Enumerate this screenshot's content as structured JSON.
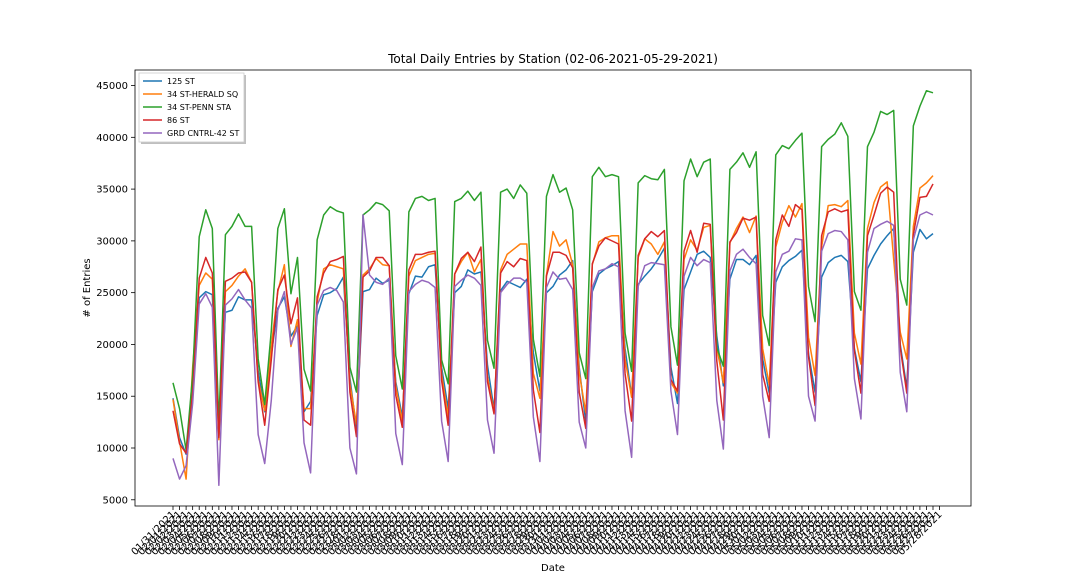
{
  "chart_data": {
    "type": "line",
    "title": "Total Daily Entries by Station (02-06-2021-05-29-2021)",
    "xlabel": "Date",
    "ylabel": "# of Entries",
    "ylim": [
      4400,
      46500
    ],
    "yticks": [
      5000,
      10000,
      15000,
      20000,
      25000,
      30000,
      35000,
      40000,
      45000
    ],
    "x_start_label": "01/31/2021",
    "x_end_label": "05/28/2021",
    "x_tick_labels": [
      "01/31/2021",
      "02/01/2021",
      "02/02/2021",
      "02/03/2021",
      "02/04/2021",
      "02/05/2021",
      "02/06/2021",
      "02/07/2021",
      "02/08/2021",
      "02/09/2021",
      "02/10/2021",
      "02/11/2021",
      "02/12/2021",
      "02/13/2021",
      "02/14/2021",
      "02/15/2021",
      "02/16/2021",
      "02/17/2021",
      "02/18/2021",
      "02/19/2021",
      "02/20/2021",
      "02/21/2021",
      "02/22/2021",
      "02/23/2021",
      "02/24/2021",
      "02/25/2021",
      "02/26/2021",
      "02/27/2021",
      "02/28/2021",
      "03/01/2021",
      "03/02/2021",
      "03/03/2021",
      "03/04/2021",
      "03/05/2021",
      "03/06/2021",
      "03/07/2021",
      "03/08/2021",
      "03/09/2021",
      "03/10/2021",
      "03/11/2021",
      "03/12/2021",
      "03/13/2021",
      "03/14/2021",
      "03/15/2021",
      "03/16/2021",
      "03/17/2021",
      "03/18/2021",
      "03/19/2021",
      "03/20/2021",
      "03/21/2021",
      "03/22/2021",
      "03/23/2021",
      "03/24/2021",
      "03/25/2021",
      "03/26/2021",
      "03/27/2021",
      "03/28/2021",
      "03/29/2021",
      "03/30/2021",
      "03/31/2021",
      "04/01/2021",
      "04/02/2021",
      "04/03/2021",
      "04/04/2021",
      "04/05/2021",
      "04/06/2021",
      "04/07/2021",
      "04/08/2021",
      "04/09/2021",
      "04/10/2021",
      "04/11/2021",
      "04/12/2021",
      "04/13/2021",
      "04/14/2021",
      "04/15/2021",
      "04/16/2021",
      "04/17/2021",
      "04/18/2021",
      "04/19/2021",
      "04/20/2021",
      "04/21/2021",
      "04/22/2021",
      "04/23/2021",
      "04/24/2021",
      "04/25/2021",
      "04/26/2021",
      "04/27/2021",
      "04/28/2021",
      "04/29/2021",
      "04/30/2021",
      "05/01/2021",
      "05/02/2021",
      "05/03/2021",
      "05/04/2021",
      "05/05/2021",
      "05/06/2021",
      "05/07/2021",
      "05/08/2021",
      "05/09/2021",
      "05/10/2021",
      "05/11/2021",
      "05/12/2021",
      "05/13/2021",
      "05/14/2021",
      "05/15/2021",
      "05/16/2021",
      "05/17/2021",
      "05/18/2021",
      "05/19/2021",
      "05/20/2021",
      "05/21/2021",
      "05/22/2021",
      "05/23/2021",
      "05/24/2021",
      "05/25/2021",
      "05/26/2021",
      "05/27/2021",
      "05/28/2021"
    ],
    "legend_position": "upper-left",
    "grid": false,
    "series": [
      {
        "name": "125 ST",
        "color": "#1f77b4",
        "values": [
          14800,
          11000,
          9400,
          16000,
          24500,
          25100,
          24800,
          11200,
          23100,
          23300,
          24600,
          24300,
          24300,
          17500,
          13500,
          19000,
          23500,
          24600,
          20800,
          21800,
          13500,
          14500,
          22800,
          24800,
          25000,
          25400,
          26500,
          16800,
          11800,
          25100,
          25300,
          26400,
          25900,
          26200,
          16400,
          13000,
          24900,
          26600,
          26500,
          27500,
          27700,
          17800,
          13800,
          25000,
          25600,
          27200,
          26800,
          27000,
          18000,
          13700,
          25200,
          26100,
          25800,
          25500,
          26300,
          19200,
          15500,
          25000,
          25600,
          26700,
          27200,
          28100,
          17800,
          12500,
          25100,
          26800,
          27300,
          27600,
          28000,
          19600,
          15000,
          25800,
          26600,
          27300,
          28200,
          29300,
          17800,
          14300,
          25300,
          27000,
          28700,
          29000,
          28400,
          20800,
          16000,
          26300,
          28200,
          28200,
          27700,
          28600,
          18600,
          15300,
          26000,
          27500,
          28100,
          28500,
          29100,
          19100,
          15400,
          26500,
          27900,
          28400,
          28600,
          28000,
          19600,
          16400,
          27300,
          28600,
          29700,
          30500,
          31200,
          20000,
          15800,
          28900,
          31100,
          30200,
          30700
        ]
      },
      {
        "name": "34 ST-HERALD SQ",
        "color": "#ff7f0e",
        "values": [
          14700,
          10600,
          7000,
          17800,
          25700,
          26900,
          26300,
          10800,
          25100,
          25700,
          26600,
          27300,
          26000,
          16600,
          13600,
          19800,
          25100,
          27700,
          19800,
          22400,
          13800,
          13800,
          24100,
          27300,
          27700,
          27500,
          27300,
          16200,
          12300,
          26700,
          27300,
          28300,
          27700,
          27600,
          16000,
          12600,
          26600,
          28100,
          28400,
          28700,
          28800,
          17100,
          13000,
          26800,
          28000,
          28900,
          27000,
          28200,
          16900,
          13400,
          27200,
          28700,
          29200,
          29700,
          29700,
          17200,
          14800,
          26700,
          30900,
          29500,
          30100,
          27700,
          17300,
          13400,
          27700,
          29900,
          30300,
          30500,
          30500,
          18600,
          14900,
          28400,
          30200,
          29700,
          28700,
          29900,
          16300,
          15300,
          28200,
          30100,
          29100,
          31300,
          31500,
          19700,
          16300,
          29800,
          31200,
          32300,
          30800,
          32400,
          19600,
          16100,
          29400,
          31800,
          33400,
          32300,
          33600,
          20700,
          17000,
          29400,
          33400,
          33500,
          33300,
          33900,
          21100,
          18100,
          31200,
          33700,
          35200,
          35700,
          28200,
          21200,
          18600,
          31400,
          35100,
          35600,
          36300
        ]
      },
      {
        "name": "34 ST-PENN STA",
        "color": "#2ca02c",
        "values": [
          16300,
          13800,
          9800,
          17000,
          30400,
          33000,
          31200,
          12300,
          30600,
          31400,
          32600,
          31400,
          31400,
          18600,
          14200,
          21300,
          31200,
          33100,
          24900,
          28400,
          17600,
          15500,
          30100,
          32500,
          33300,
          32900,
          32700,
          17800,
          15400,
          32500,
          33000,
          33700,
          33500,
          32900,
          18900,
          15700,
          32800,
          34100,
          34300,
          33900,
          34100,
          18500,
          16200,
          33800,
          34100,
          34800,
          33900,
          34700,
          20400,
          17700,
          34700,
          35000,
          34100,
          35400,
          34600,
          20500,
          16900,
          34300,
          36400,
          34700,
          35100,
          33000,
          19200,
          16700,
          36200,
          37100,
          36200,
          36400,
          36200,
          21100,
          17400,
          35600,
          36300,
          36000,
          35900,
          36900,
          21700,
          18000,
          35800,
          37900,
          36200,
          37600,
          37900,
          19700,
          17900,
          36900,
          37600,
          38500,
          37100,
          38600,
          22800,
          19900,
          38300,
          39200,
          38900,
          39700,
          40400,
          25600,
          22200,
          39100,
          39800,
          40300,
          41400,
          40100,
          25100,
          23300,
          39100,
          40500,
          42500,
          42200,
          42600,
          26300,
          23800,
          41100,
          43000,
          44500,
          44300
        ]
      },
      {
        "name": "86 ST",
        "color": "#d62728",
        "values": [
          13600,
          10400,
          9500,
          15300,
          26400,
          28400,
          26900,
          11000,
          26100,
          26400,
          26900,
          27000,
          26000,
          16400,
          12200,
          18500,
          25300,
          26700,
          22000,
          24500,
          12700,
          12200,
          24600,
          26900,
          28000,
          28200,
          28500,
          15400,
          11100,
          26500,
          27100,
          28400,
          28400,
          27600,
          15100,
          12000,
          27200,
          28700,
          28700,
          28900,
          29000,
          16500,
          12200,
          26800,
          28300,
          28900,
          28000,
          29400,
          16400,
          13300,
          26900,
          28000,
          27500,
          28300,
          28100,
          15600,
          11500,
          26600,
          28900,
          28900,
          28600,
          27400,
          15400,
          11900,
          27800,
          29500,
          30300,
          30000,
          29700,
          17200,
          12600,
          28600,
          30200,
          30900,
          30400,
          31000,
          16600,
          15500,
          29000,
          31000,
          28900,
          31700,
          31600,
          18400,
          12700,
          29900,
          30800,
          32200,
          32000,
          32300,
          17100,
          14500,
          30100,
          32500,
          31400,
          33500,
          33000,
          18800,
          14100,
          30500,
          32800,
          33100,
          32800,
          33000,
          19400,
          15300,
          30500,
          32500,
          34600,
          35200,
          34700,
          19700,
          15300,
          30600,
          34200,
          34300,
          35500
        ]
      },
      {
        "name": "GRD CNTRL-42 ST",
        "color": "#9467bd",
        "values": [
          9000,
          7000,
          8300,
          14300,
          23900,
          24900,
          23600,
          6400,
          23800,
          24400,
          25300,
          24300,
          23500,
          11300,
          8500,
          14600,
          23300,
          25100,
          20000,
          21600,
          10500,
          7600,
          23800,
          25200,
          25500,
          25200,
          24100,
          10000,
          7500,
          32500,
          26700,
          26000,
          25800,
          26400,
          11400,
          8400,
          25100,
          25800,
          26200,
          26000,
          25500,
          12600,
          8700,
          25600,
          26200,
          26700,
          26400,
          25700,
          12700,
          9500,
          25000,
          25800,
          26400,
          26400,
          26000,
          13000,
          8700,
          25500,
          27000,
          26300,
          26400,
          25300,
          12500,
          10000,
          25500,
          27100,
          27300,
          27800,
          27500,
          13600,
          9100,
          25600,
          27600,
          27900,
          27800,
          27700,
          15500,
          11300,
          26600,
          28400,
          27600,
          28200,
          27900,
          14600,
          9900,
          27100,
          28700,
          29200,
          28400,
          27800,
          15000,
          11000,
          27000,
          28700,
          29000,
          30200,
          30100,
          15000,
          12600,
          29000,
          30700,
          31000,
          30900,
          30100,
          16700,
          12800,
          28900,
          31200,
          31600,
          31900,
          31500,
          17300,
          13500,
          30100,
          32500,
          32800,
          32500
        ]
      }
    ]
  }
}
